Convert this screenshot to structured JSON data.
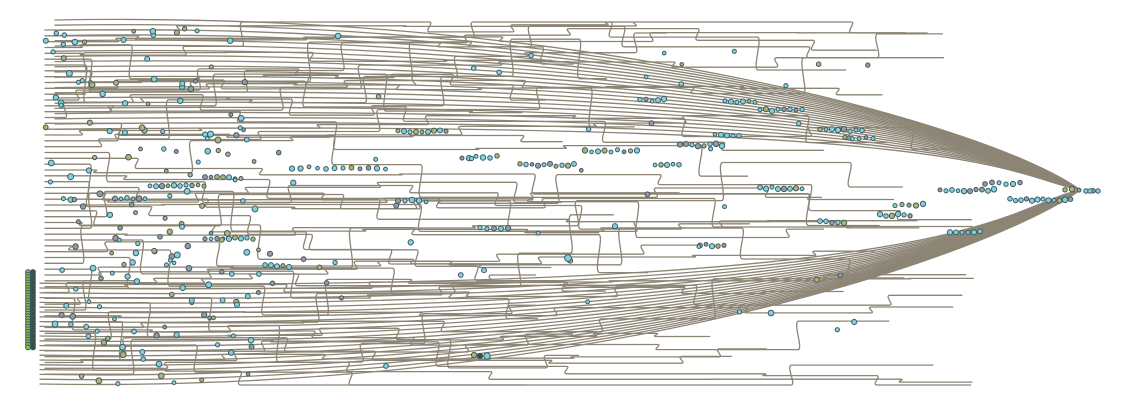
{
  "diagram": {
    "kind": "hierarchical-flow-graph",
    "colors": {
      "background": "#ffffff",
      "edge": "#8c8575",
      "node_fill_cyan": "#7fd3db",
      "node_fill_green": "#8dbf4a",
      "node_fill_olive": "#b2b46a",
      "node_fill_grey": "#9a9a9a",
      "node_fill_dark": "#3a4a40",
      "node_stroke": "#3e5a66"
    }
  }
}
